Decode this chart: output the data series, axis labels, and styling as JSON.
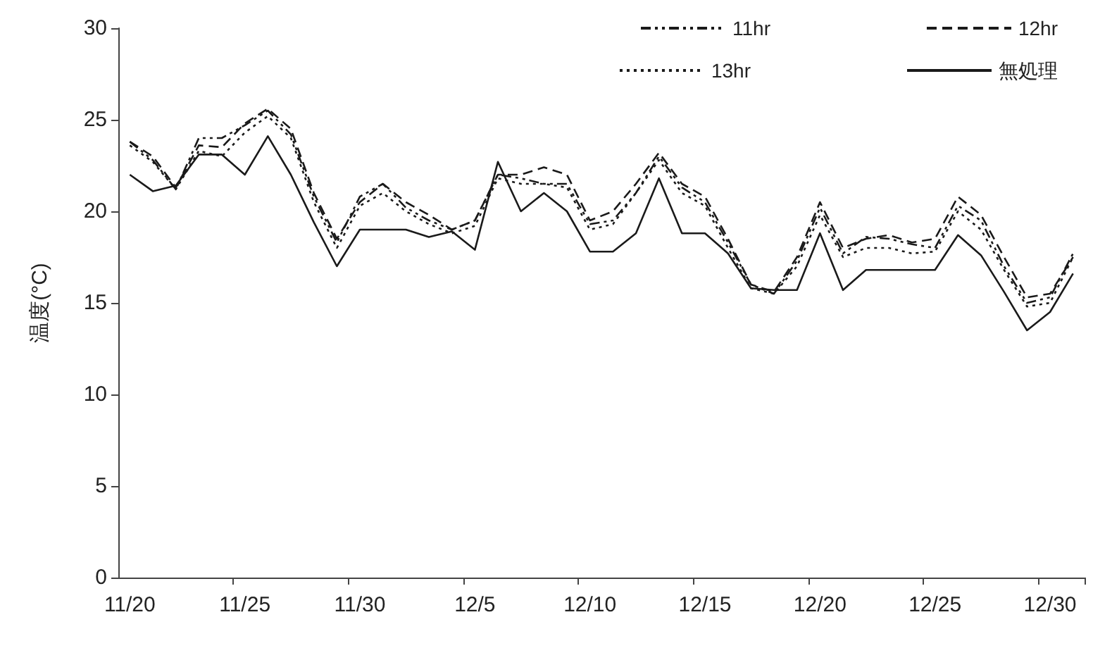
{
  "chart_data": {
    "type": "line",
    "ylabel": "温度(°C)",
    "categories": [
      "11/20",
      null,
      null,
      null,
      null,
      "11/25",
      null,
      null,
      null,
      null,
      "11/30",
      null,
      null,
      null,
      null,
      "12/5",
      null,
      null,
      null,
      null,
      "12/10",
      null,
      null,
      null,
      null,
      "12/15",
      null,
      null,
      null,
      null,
      "12/20",
      null,
      null,
      null,
      null,
      "12/25",
      null,
      null,
      null,
      null,
      "12/30",
      null
    ],
    "series": [
      {
        "name": "11hr",
        "color": "#1a1a1a",
        "line_style": "dashdot",
        "values": [
          23.8,
          22.8,
          21.2,
          24.0,
          24.0,
          24.7,
          25.5,
          24.2,
          20.8,
          18.3,
          20.8,
          21.5,
          20.2,
          19.5,
          19.0,
          19.5,
          22.0,
          21.8,
          21.5,
          21.5,
          19.3,
          19.5,
          21.0,
          23.0,
          21.3,
          20.5,
          18.3,
          16.0,
          15.5,
          17.3,
          20.2,
          17.7,
          18.6,
          18.5,
          18.2,
          18.0,
          20.3,
          19.5,
          17.0,
          15.0,
          15.3,
          17.7
        ]
      },
      {
        "name": "12hr",
        "color": "#1a1a1a",
        "line_style": "dashed",
        "values": [
          23.8,
          23.0,
          21.3,
          23.6,
          23.5,
          24.8,
          25.6,
          24.5,
          21.0,
          18.5,
          20.5,
          21.5,
          20.5,
          19.8,
          19.0,
          19.5,
          22.0,
          22.0,
          22.4,
          22.0,
          19.5,
          20.0,
          21.5,
          23.2,
          21.5,
          20.8,
          18.5,
          16.0,
          15.6,
          17.5,
          20.5,
          18.0,
          18.5,
          18.7,
          18.3,
          18.5,
          20.8,
          19.8,
          17.5,
          15.3,
          15.5,
          17.5
        ]
      },
      {
        "name": "13hr",
        "color": "#1a1a1a",
        "line_style": "dotted",
        "values": [
          23.6,
          22.7,
          21.2,
          23.3,
          23.0,
          24.3,
          25.2,
          24.0,
          20.5,
          18.0,
          20.3,
          21.0,
          20.0,
          19.3,
          18.8,
          19.2,
          21.8,
          21.5,
          21.5,
          21.3,
          19.0,
          19.3,
          21.0,
          22.8,
          21.0,
          20.3,
          18.0,
          15.8,
          15.5,
          17.0,
          19.8,
          17.5,
          18.0,
          18.0,
          17.7,
          17.8,
          20.0,
          19.0,
          16.8,
          14.8,
          15.0,
          17.5
        ]
      },
      {
        "name": "無処理",
        "color": "#1a1a1a",
        "line_style": "solid",
        "values": [
          22.0,
          21.1,
          21.4,
          23.1,
          23.1,
          22.0,
          24.1,
          22.0,
          19.4,
          17.0,
          19.0,
          19.0,
          19.0,
          18.6,
          18.9,
          17.9,
          22.7,
          20.0,
          21.0,
          20.0,
          17.8,
          17.8,
          18.8,
          21.8,
          18.8,
          18.8,
          17.7,
          15.8,
          15.7,
          15.7,
          18.8,
          15.7,
          16.8,
          16.8,
          16.8,
          16.8,
          18.7,
          17.6,
          15.6,
          13.5,
          14.5,
          16.6
        ]
      }
    ],
    "ylim": [
      0,
      30
    ],
    "yticks": [
      0,
      5,
      10,
      15,
      20,
      25,
      30
    ],
    "grid": false,
    "legend": "top right",
    "marker": "none"
  }
}
